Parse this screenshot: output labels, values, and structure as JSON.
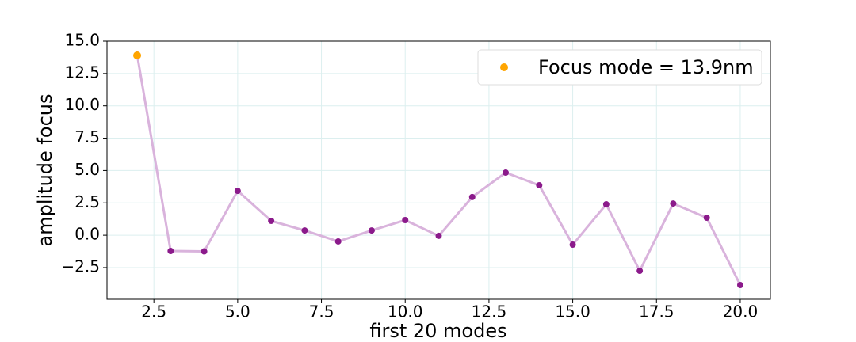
{
  "chart_data": {
    "type": "line",
    "xlabel": "first 20 modes",
    "ylabel": "amplitude focus",
    "x": [
      2,
      3,
      4,
      5,
      6,
      7,
      8,
      9,
      10,
      11,
      12,
      13,
      14,
      15,
      16,
      17,
      18,
      19,
      20
    ],
    "values": [
      13.95,
      -1.22,
      -1.25,
      3.43,
      1.11,
      0.37,
      -0.48,
      0.37,
      1.17,
      -0.05,
      2.95,
      4.84,
      3.86,
      -0.73,
      2.39,
      -2.75,
      2.45,
      1.35,
      -3.85
    ],
    "line_color": "#d9b3dc",
    "marker_color": "#8b1a8b",
    "highlight": {
      "name": "Focus mode = 13.9nm",
      "x": 2,
      "value": 13.9,
      "color": "#ffa500"
    },
    "legend": "upper right",
    "xlim": [
      1.1,
      20.9
    ],
    "ylim": [
      -4.95,
      15.0
    ],
    "xticks": [
      {
        "value": 2.5,
        "label": "2.5"
      },
      {
        "value": 5,
        "label": "5.0"
      },
      {
        "value": 7.5,
        "label": "7.5"
      },
      {
        "value": 10,
        "label": "10.0"
      },
      {
        "value": 12.5,
        "label": "12.5"
      },
      {
        "value": 15,
        "label": "15.0"
      },
      {
        "value": 17.5,
        "label": "17.5"
      },
      {
        "value": 20,
        "label": "20.0"
      }
    ],
    "yticks": [
      {
        "value": -2.5,
        "label": "−2.5"
      },
      {
        "value": 0,
        "label": "0.0"
      },
      {
        "value": 2.5,
        "label": "2.5"
      },
      {
        "value": 5,
        "label": "5.0"
      },
      {
        "value": 7.5,
        "label": "7.5"
      },
      {
        "value": 10,
        "label": "10.0"
      },
      {
        "value": 12.5,
        "label": "12.5"
      },
      {
        "value": 15,
        "label": "15.0"
      }
    ],
    "grid": true
  }
}
